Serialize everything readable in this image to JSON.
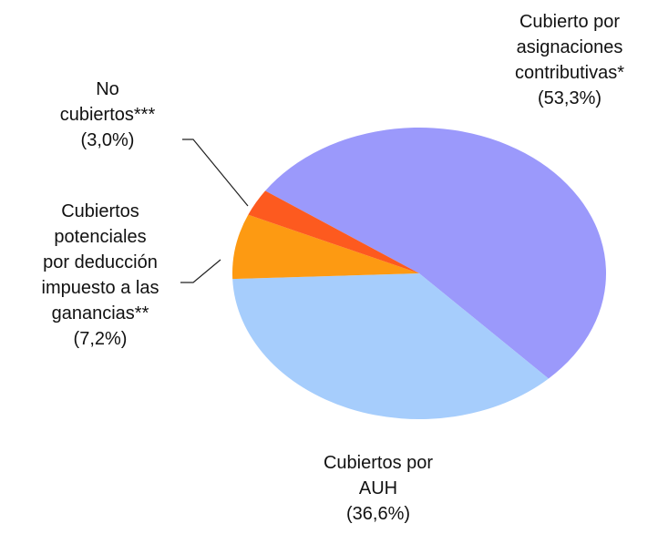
{
  "chart_data": {
    "type": "pie",
    "categories": [
      "Cubierto por\nasignaciones\ncontributivas*",
      "Cubiertos por\nAUH",
      "Cubiertos\npotenciales\npor deducción\nimpuesto a las\nganancias**",
      "No\ncubiertos***"
    ],
    "values": [
      53.3,
      36.6,
      7.2,
      3.0
    ],
    "value_labels": [
      "(53,3%)",
      "(36,6%)",
      "(7,2%)",
      "(3,0%)"
    ],
    "colors": [
      "#9b99fb",
      "#a6cdfc",
      "#fd9a12",
      "#fd5a1f"
    ]
  }
}
